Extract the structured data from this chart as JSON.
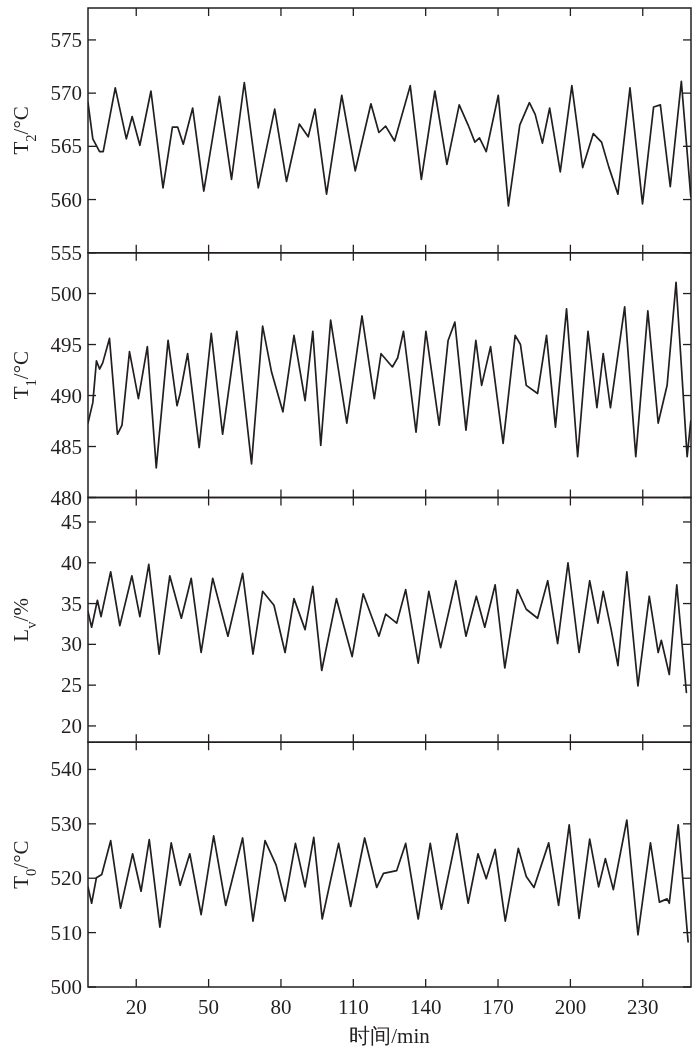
{
  "chart_data": [
    {
      "type": "line",
      "ylabel": "T$_{2}$/°C",
      "xlim": [
        0,
        250
      ],
      "ylim": [
        555,
        578
      ],
      "xticks": [
        20,
        50,
        80,
        110,
        140,
        170,
        200,
        230
      ],
      "yticks": [
        555,
        560,
        565,
        570,
        575
      ],
      "tick_labels": "y",
      "series": [
        {
          "color": "#231f20",
          "x": [
            0,
            2.0,
            4.8,
            6.3,
            11.3,
            15.9,
            18.3,
            21.5,
            26.1,
            31.1,
            35.0,
            37.2,
            39.5,
            43.4,
            48.0,
            54.5,
            59.5,
            64.8,
            70.6,
            77.4,
            82.3,
            87.6,
            91.3,
            94.1,
            98.9,
            105.2,
            110.8,
            117.3,
            120.6,
            123.4,
            127.1,
            133.6,
            138.2,
            143.8,
            148.8,
            153.9,
            157.6,
            160.4,
            162.3,
            165.1,
            170.1,
            174.3,
            179.0,
            183.0,
            185.4,
            188.4,
            191.4,
            195.8,
            200.6,
            205.1,
            209.5,
            212.9,
            216.0,
            219.7,
            224.7,
            229.9,
            234.5,
            237.3,
            241.4,
            246.0,
            249.9
          ],
          "values": [
            569.1,
            565.7,
            564.5,
            564.5,
            570.5,
            565.7,
            567.8,
            565.1,
            570.2,
            561.1,
            566.8,
            566.8,
            565.2,
            568.6,
            560.8,
            569.7,
            561.9,
            571.0,
            561.1,
            568.5,
            561.7,
            567.1,
            565.9,
            568.5,
            560.5,
            569.8,
            562.7,
            569.0,
            566.3,
            566.9,
            565.5,
            570.7,
            561.9,
            570.2,
            563.3,
            568.9,
            567.0,
            565.4,
            565.8,
            564.5,
            569.8,
            559.4,
            567.0,
            569.1,
            568.0,
            565.3,
            568.6,
            562.6,
            570.7,
            563.0,
            566.2,
            565.4,
            563.0,
            560.5,
            570.5,
            559.6,
            568.7,
            568.9,
            561.2,
            571.1,
            560.3
          ]
        }
      ]
    },
    {
      "type": "line",
      "ylabel": "T$_{1}$/°C",
      "xlim": [
        0,
        250
      ],
      "ylim": [
        480,
        504
      ],
      "xticks": [
        20,
        50,
        80,
        110,
        140,
        170,
        200,
        230
      ],
      "yticks": [
        480,
        485,
        490,
        495,
        500
      ],
      "tick_labels": "y",
      "series": [
        {
          "color": "#231f20",
          "x": [
            0,
            2.0,
            3.5,
            4.8,
            6.1,
            8.9,
            12.2,
            14.1,
            17.2,
            20.9,
            24.6,
            28.3,
            33.2,
            36.9,
            38.2,
            41.3,
            46.1,
            51.1,
            55.8,
            61.7,
            67.8,
            72.4,
            76.1,
            80.8,
            85.4,
            90.0,
            93.2,
            96.5,
            100.6,
            107.3,
            113.6,
            118.7,
            121.5,
            126.2,
            128.4,
            130.8,
            136.0,
            140.1,
            145.6,
            149.3,
            152.1,
            156.7,
            160.8,
            163.2,
            166.9,
            172.1,
            177.1,
            179.3,
            181.7,
            186.4,
            190.1,
            193.8,
            198.4,
            203.0,
            207.3,
            211.0,
            213.6,
            216.6,
            222.5,
            227.1,
            232.1,
            236.4,
            240.1,
            243.8,
            248.4,
            249.9
          ],
          "values": [
            487.3,
            489.3,
            493.4,
            492.6,
            493.2,
            495.6,
            486.2,
            487.1,
            494.3,
            489.7,
            494.8,
            482.9,
            495.4,
            489.0,
            490.2,
            494.1,
            484.9,
            496.1,
            486.2,
            496.3,
            483.3,
            496.8,
            492.3,
            488.4,
            495.9,
            489.5,
            496.3,
            485.1,
            497.4,
            487.3,
            497.8,
            489.7,
            494.1,
            492.8,
            493.7,
            496.3,
            486.4,
            496.3,
            487.1,
            495.4,
            497.2,
            486.6,
            495.4,
            491.0,
            494.8,
            485.3,
            495.9,
            495.0,
            491.0,
            490.2,
            495.9,
            486.9,
            498.5,
            484.0,
            496.3,
            488.8,
            494.1,
            488.8,
            498.7,
            484.0,
            498.3,
            487.3,
            491.0,
            501.1,
            484.0,
            487.5
          ]
        }
      ]
    },
    {
      "type": "line",
      "ylabel": "L$_{v}$/%",
      "xlim": [
        0,
        250
      ],
      "ylim": [
        18,
        48
      ],
      "xticks": [
        20,
        50,
        80,
        110,
        140,
        170,
        200,
        230
      ],
      "yticks": [
        20,
        25,
        30,
        35,
        40,
        45
      ],
      "tick_labels": "y",
      "series": [
        {
          "color": "#231f20",
          "x": [
            0,
            1.5,
            3.9,
            5.4,
            9.4,
            13.2,
            18.2,
            21.5,
            25.2,
            29.5,
            33.9,
            38.7,
            42.8,
            46.9,
            51.7,
            58.0,
            64.1,
            68.4,
            72.4,
            77.1,
            81.7,
            85.4,
            90.0,
            93.2,
            96.9,
            103.0,
            109.5,
            114.1,
            120.6,
            123.4,
            128.0,
            131.7,
            136.9,
            141.3,
            146.2,
            152.5,
            156.7,
            161.0,
            164.5,
            168.8,
            172.8,
            178.0,
            181.7,
            186.4,
            190.6,
            194.7,
            199.0,
            203.6,
            208.0,
            211.4,
            213.6,
            216.9,
            219.7,
            223.4,
            228.0,
            232.7,
            236.4,
            237.7,
            241.0,
            244.1,
            248.1
          ],
          "values": [
            34.0,
            32.1,
            35.4,
            33.4,
            38.9,
            32.3,
            38.4,
            33.4,
            39.8,
            28.8,
            38.4,
            33.2,
            38.1,
            29.0,
            38.1,
            31.0,
            38.7,
            28.8,
            36.5,
            34.8,
            29.0,
            35.6,
            31.8,
            37.1,
            26.8,
            35.6,
            28.5,
            36.2,
            31.0,
            33.7,
            32.6,
            36.7,
            27.7,
            36.5,
            29.6,
            37.8,
            31.0,
            35.9,
            32.1,
            37.3,
            27.1,
            36.7,
            34.3,
            33.2,
            37.8,
            30.1,
            40.0,
            29.0,
            37.8,
            32.6,
            36.5,
            31.8,
            27.4,
            38.9,
            24.9,
            35.9,
            29.0,
            30.5,
            26.3,
            37.3,
            24.1
          ]
        }
      ]
    },
    {
      "type": "line",
      "xlabel": "时间/min",
      "ylabel": "T$_{0}$/°C",
      "xlim": [
        0,
        250
      ],
      "ylim": [
        500,
        545
      ],
      "xticks": [
        20,
        50,
        80,
        110,
        140,
        170,
        200,
        230
      ],
      "yticks": [
        500,
        510,
        520,
        530,
        540
      ],
      "series": [
        {
          "color": "#231f20",
          "x": [
            0,
            1.5,
            3.5,
            5.7,
            9.4,
            13.5,
            18.5,
            22.0,
            25.4,
            29.8,
            34.5,
            38.2,
            42.2,
            46.9,
            52.1,
            57.1,
            64.1,
            68.4,
            73.4,
            78.0,
            81.7,
            86.0,
            90.0,
            93.6,
            97.1,
            103.9,
            108.9,
            114.7,
            119.7,
            122.5,
            128.0,
            131.7,
            136.9,
            141.9,
            146.5,
            153.0,
            157.6,
            161.7,
            165.1,
            168.8,
            173.0,
            178.4,
            181.7,
            184.9,
            191.0,
            195.1,
            199.5,
            203.6,
            208.0,
            211.7,
            214.5,
            217.8,
            223.4,
            228.0,
            233.2,
            236.9,
            240.1,
            241.0,
            244.7,
            248.8
          ],
          "values": [
            518.4,
            515.4,
            520.1,
            520.7,
            526.9,
            514.5,
            524.5,
            517.6,
            527.1,
            511.0,
            526.5,
            518.7,
            524.5,
            513.3,
            527.8,
            515.0,
            527.4,
            512.1,
            526.9,
            522.4,
            515.8,
            526.4,
            518.4,
            527.5,
            512.5,
            526.4,
            514.8,
            527.4,
            518.3,
            520.9,
            521.4,
            526.4,
            512.5,
            526.4,
            514.3,
            528.2,
            515.4,
            524.5,
            519.9,
            525.3,
            512.1,
            525.5,
            520.3,
            518.3,
            526.5,
            515.0,
            529.8,
            512.6,
            527.2,
            518.4,
            523.6,
            517.9,
            530.7,
            509.6,
            526.5,
            515.6,
            516.2,
            515.4,
            529.8,
            508.3
          ]
        }
      ]
    }
  ]
}
